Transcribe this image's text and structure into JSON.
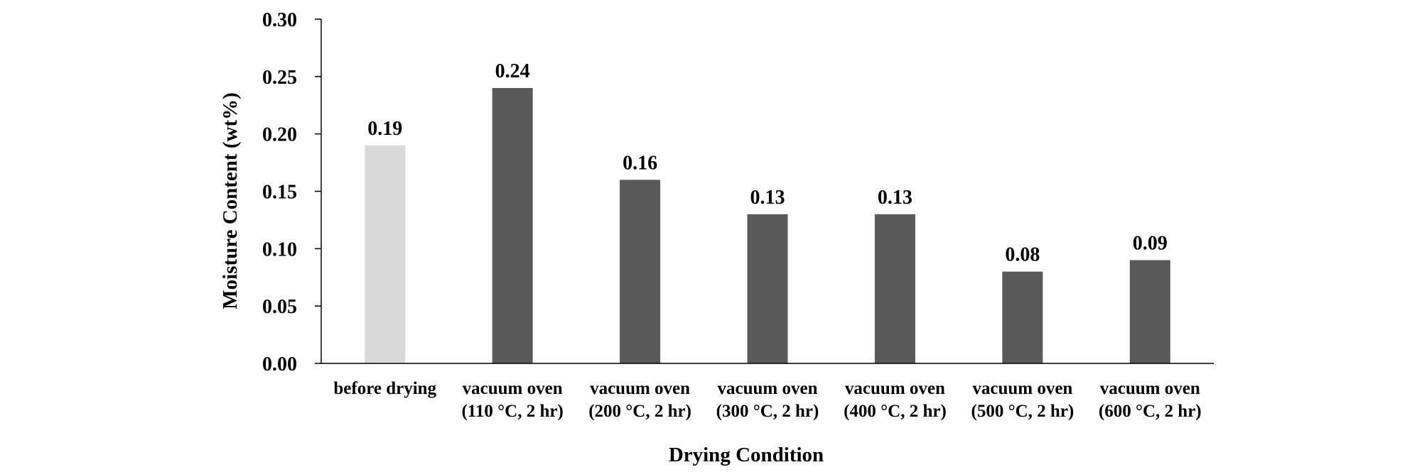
{
  "chart_data": {
    "type": "bar",
    "title": "",
    "xlabel": "Drying Condition",
    "ylabel": "Moisture Content (wt%)",
    "ylim": [
      0,
      0.3
    ],
    "yticks": [
      "0.00",
      "0.05",
      "0.10",
      "0.15",
      "0.20",
      "0.25",
      "0.30"
    ],
    "categories": [
      [
        "before drying"
      ],
      [
        "vacuum oven",
        "(110 °C, 2 hr)"
      ],
      [
        "vacuum oven",
        "(200 °C, 2 hr)"
      ],
      [
        "vacuum oven",
        "(300 °C, 2 hr)"
      ],
      [
        "vacuum oven",
        "(400 °C, 2 hr)"
      ],
      [
        "vacuum oven",
        "(500 °C, 2 hr)"
      ],
      [
        "vacuum oven",
        "(600 °C, 2 hr)"
      ]
    ],
    "values": [
      0.19,
      0.24,
      0.16,
      0.13,
      0.13,
      0.08,
      0.09
    ],
    "data_labels": [
      "0.19",
      "0.24",
      "0.16",
      "0.13",
      "0.13",
      "0.08",
      "0.09"
    ],
    "bar_colors": [
      "#d9d9d9",
      "#595959",
      "#595959",
      "#595959",
      "#595959",
      "#595959",
      "#595959"
    ],
    "grid": false,
    "legend": "none"
  }
}
